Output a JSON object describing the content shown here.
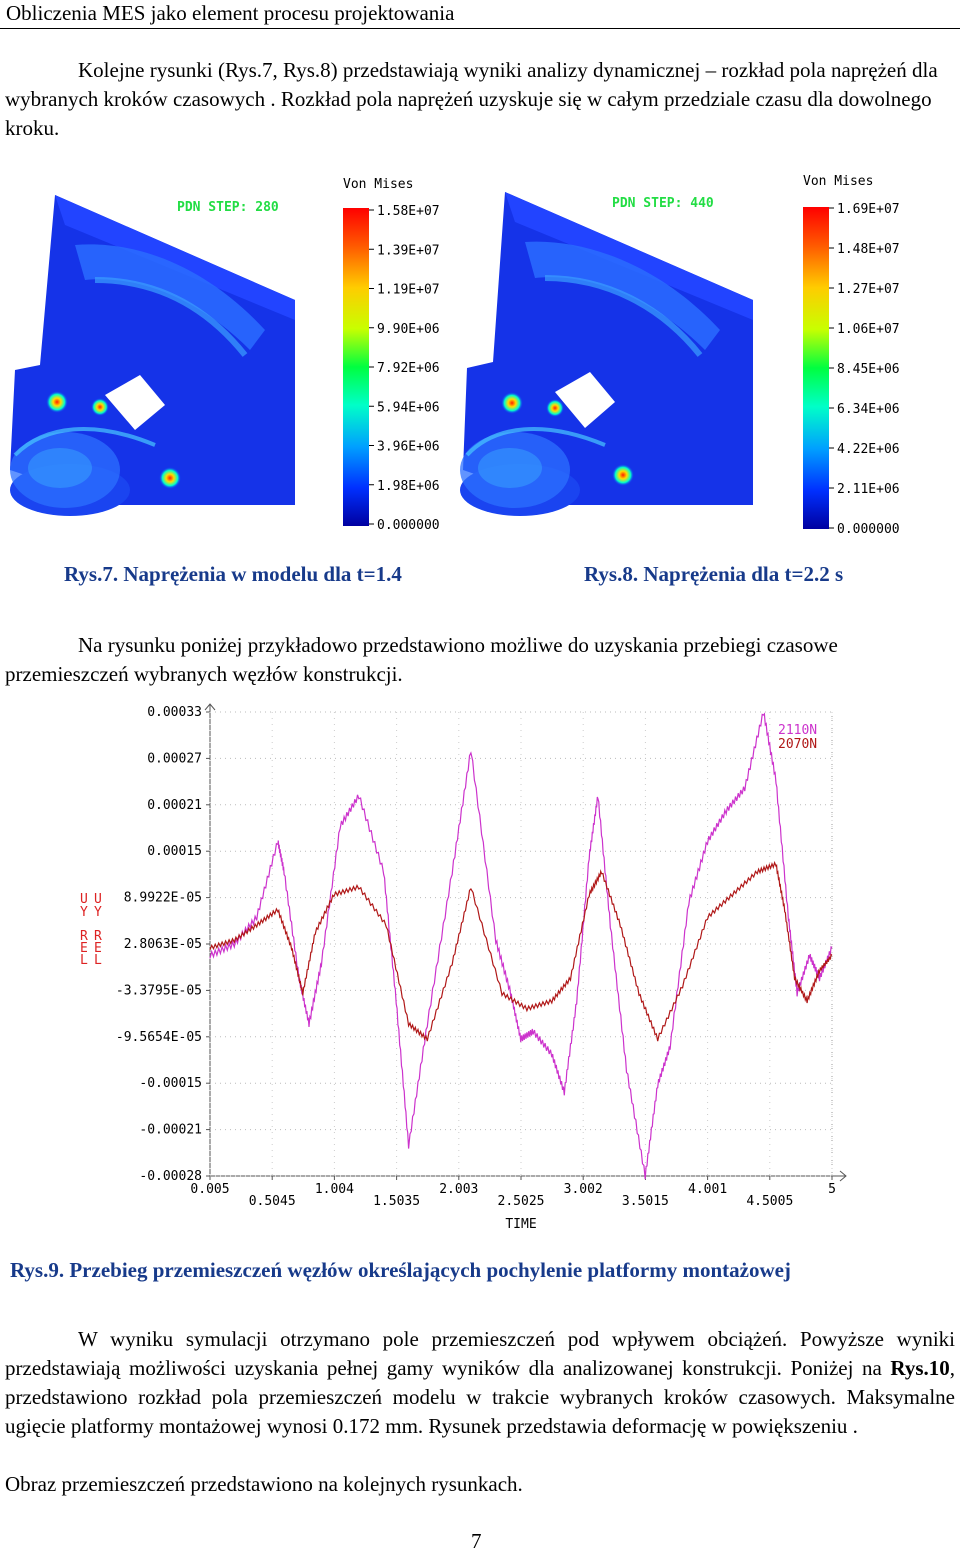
{
  "header": {
    "title": "Obliczenia MES jako element procesu projektowania"
  },
  "paragraphs": {
    "p1": "Kolejne rysunki (Rys.7, Rys.8)  przedstawiają wyniki analizy dynamicznej – rozkład pola naprężeń dla wybranych kroków czasowych . Rozkład pola naprężeń uzyskuje się w całym przedziale czasu dla dowolnego kroku.",
    "p2": "Na rysunku poniżej przykładowo przedstawiono możliwe do uzyskania przebiegi czasowe przemieszczeń wybranych węzłów konstrukcji.",
    "p3_a": "W wyniku symulacji otrzymano pole przemieszczeń pod wpływem obciążeń. Powyższe wyniki przedstawiają możliwości uzyskania pełnej gamy wyników dla analizowanej konstrukcji. Poniżej na ",
    "p3_ref": "Rys.10",
    "p3_b": ", przedstawiono rozkład pola przemieszczeń modelu w trakcie wybranych kroków czasowych. Maksymalne ugięcie platformy montażowej wynosi 0.172 mm. Rysunek przedstawia deformację w powiększeniu .",
    "p4": "Obraz przemieszczeń przedstawiono na kolejnych rysunkach."
  },
  "figures": {
    "rys7": {
      "caption": "Rys.7. Naprężenia w modelu dla t=1.4",
      "step_label": "PDN STEP: 280",
      "colorbar_title": "Von Mises",
      "colorbar_ticks": [
        "1.58E+07",
        "1.39E+07",
        "1.19E+07",
        "9.90E+06",
        "7.92E+06",
        "5.94E+06",
        "3.96E+06",
        "1.98E+06",
        "0.000000"
      ]
    },
    "rys8": {
      "caption": "Rys.8. Naprężenia dla t=2.2 s",
      "step_label": "PDN STEP: 440",
      "colorbar_title": "Von Mises",
      "colorbar_ticks": [
        "1.69E+07",
        "1.48E+07",
        "1.27E+07",
        "1.06E+07",
        "8.45E+06",
        "6.34E+06",
        "4.22E+06",
        "2.11E+06",
        "0.000000"
      ]
    },
    "rys9": {
      "caption": "Rys.9. Przebieg przemieszczeń węzłów określających pochylenie platformy montażowej"
    }
  },
  "chart_data": {
    "type": "line",
    "xlabel": "TIME",
    "ylabel": "UY REL",
    "x_ticks": [
      "0.005",
      "0.5045",
      "1.004",
      "1.5035",
      "2.003",
      "2.5025",
      "3.002",
      "3.5015",
      "4.001",
      "4.5005",
      "5"
    ],
    "y_ticks": [
      "0.00033",
      "0.00027",
      "0.00021",
      "0.00015",
      "8.9922E-05",
      "2.8063E-05",
      "-3.3795E-05",
      "-9.5654E-05",
      "-0.00015",
      "-0.00021",
      "-0.00028"
    ],
    "xlim": [
      0.005,
      5
    ],
    "ylim": [
      -0.00028,
      0.00033
    ],
    "ylabel_columns": [
      [
        "U",
        "Y",
        "R",
        "E",
        "L"
      ],
      [
        "U",
        "Y",
        "R",
        "E",
        "L"
      ]
    ],
    "series": [
      {
        "name": "2110N",
        "color": "#cc33cc",
        "x": [
          0.005,
          0.2,
          0.38,
          0.55,
          0.6,
          0.72,
          0.8,
          0.9,
          1.05,
          1.2,
          1.4,
          1.5,
          1.6,
          1.75,
          1.95,
          2.1,
          2.3,
          2.42,
          2.5,
          2.6,
          2.75,
          2.85,
          2.95,
          3.05,
          3.12,
          3.22,
          3.35,
          3.5,
          3.6,
          3.7,
          3.85,
          4.0,
          4.15,
          4.3,
          4.45,
          4.55,
          4.65,
          4.72,
          4.82,
          4.9,
          5.0
        ],
        "y": [
          1e-05,
          2.5e-05,
          6e-05,
          0.00016,
          0.00012,
          -2e-05,
          -8e-05,
          0.0,
          0.00018,
          0.00022,
          0.00012,
          -5e-05,
          -0.00024,
          -8e-05,
          0.00012,
          0.00028,
          3e-05,
          -4e-05,
          -0.0001,
          -9e-05,
          -0.00012,
          -0.00017,
          -5e-05,
          0.00014,
          0.00022,
          5e-05,
          -0.00014,
          -0.00028,
          -0.00016,
          -0.00011,
          8e-05,
          0.00016,
          0.0002,
          0.00023,
          0.00033,
          0.00024,
          6e-05,
          -4e-05,
          1e-05,
          -2e-05,
          2e-05
        ]
      },
      {
        "name": "2070N",
        "color": "#b01818",
        "x": [
          0.005,
          0.2,
          0.38,
          0.55,
          0.66,
          0.75,
          0.85,
          1.0,
          1.2,
          1.42,
          1.6,
          1.75,
          1.95,
          2.1,
          2.35,
          2.55,
          2.75,
          2.9,
          3.05,
          3.15,
          3.3,
          3.45,
          3.6,
          3.8,
          4.0,
          4.2,
          4.4,
          4.55,
          4.62,
          4.7,
          4.8,
          4.9,
          5.0
        ],
        "y": [
          2e-05,
          3e-05,
          5e-05,
          7e-05,
          2e-05,
          -4e-05,
          4e-05,
          9e-05,
          0.0001,
          5e-05,
          -8e-05,
          -0.0001,
          0.0,
          0.0001,
          -4e-05,
          -6e-05,
          -5e-05,
          -2e-05,
          9e-05,
          0.00012,
          5e-05,
          -4e-05,
          -0.0001,
          -3e-05,
          6e-05,
          9e-05,
          0.00012,
          0.00013,
          7e-05,
          -2e-05,
          -5e-05,
          -1e-05,
          1e-05
        ]
      }
    ]
  },
  "page": {
    "number": "7"
  }
}
